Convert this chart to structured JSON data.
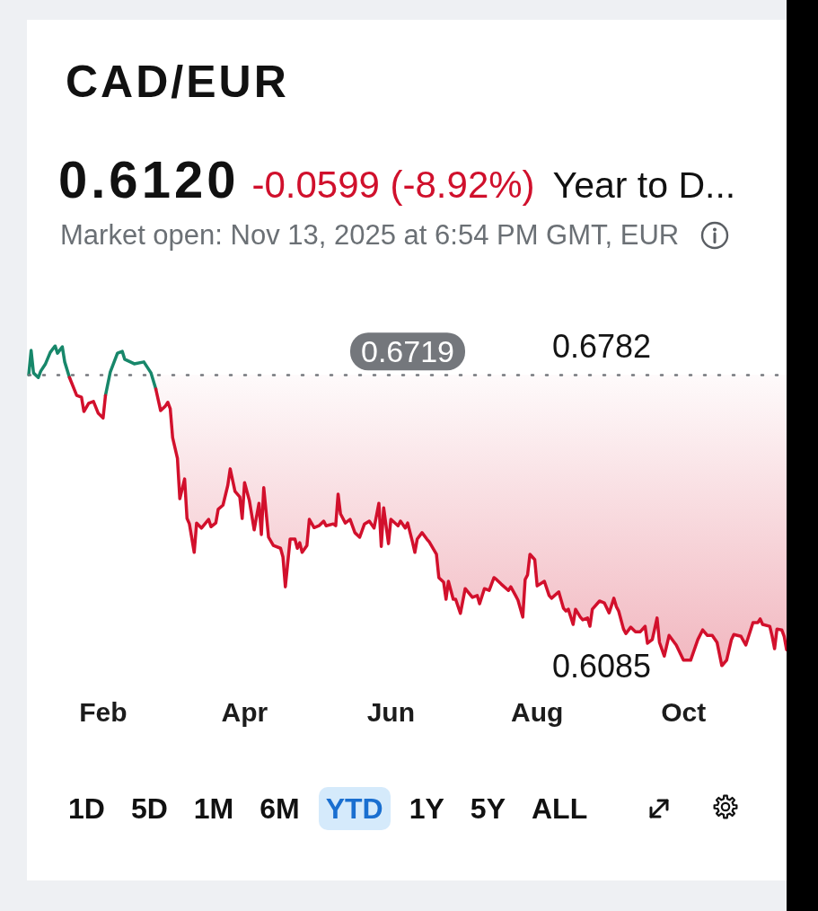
{
  "chart_data": {
    "type": "line",
    "title": "CAD/EUR",
    "annotations": [
      "0.6120",
      "-0.0599 (-8.92%)",
      "Year to D...",
      "Market open: Nov 13, 2025 at 6:54 PM GMT, EUR",
      "1D",
      "5D",
      "1M",
      "6M",
      "YTD",
      "1Y",
      "5Y",
      "ALL"
    ],
    "xlim": [
      "2025-01-01",
      "2025-11-13"
    ],
    "xticks": [
      {
        "value": "2025-02-01",
        "label": "Feb"
      },
      {
        "value": "2025-04-01",
        "label": "Apr"
      },
      {
        "value": "2025-06-01",
        "label": "Jun"
      },
      {
        "value": "2025-08-01",
        "label": "Aug"
      },
      {
        "value": "2025-10-01",
        "label": "Oct"
      }
    ],
    "ylim": [
      0.6085,
      0.6782
    ],
    "yticks": [
      0.6085,
      0.6782
    ],
    "marker": "none",
    "line_style": "solid",
    "ref_lines": [
      {
        "axis": "y",
        "value": 0.6719,
        "label": "0.6719",
        "color": "#74777c",
        "line_style": "dotted"
      }
    ],
    "series": [
      {
        "color": "#17876a",
        "x": [
          "2025-01-01",
          "2025-01-02",
          "2025-01-03",
          "2025-01-05",
          "2025-01-06",
          "2025-01-08",
          "2025-01-10",
          "2025-01-12",
          "2025-01-13",
          "2025-01-15",
          "2025-01-16",
          "2025-01-18",
          "2025-01-24",
          "2025-02-02",
          "2025-02-04",
          "2025-02-07",
          "2025-02-09",
          "2025-02-10",
          "2025-02-14",
          "2025-02-18",
          "2025-02-21",
          "2025-02-23"
        ],
        "values": [
          0.6719,
          0.6772,
          0.6723,
          0.6713,
          0.6727,
          0.6743,
          0.6768,
          0.6782,
          0.6766,
          0.678,
          0.6747,
          0.6713,
          null,
          0.6674,
          0.6725,
          0.6766,
          0.677,
          0.6753,
          0.6743,
          0.6747,
          0.6723,
          0.6688
        ]
      },
      {
        "color": "#d2102c",
        "x": [
          "2025-01-18",
          "2025-01-21",
          "2025-01-23",
          "2025-01-24",
          "2025-01-26",
          "2025-01-28",
          "2025-01-30",
          "2025-02-01",
          "2025-02-02",
          "2025-02-10",
          "2025-02-23",
          "2025-02-25",
          "2025-02-27",
          "2025-02-28",
          "2025-03-01",
          "2025-03-02",
          "2025-03-04",
          "2025-03-05",
          "2025-03-07",
          "2025-03-08",
          "2025-03-09",
          "2025-03-11",
          "2025-03-12",
          "2025-03-14",
          "2025-03-17",
          "2025-03-18",
          "2025-03-20",
          "2025-03-21",
          "2025-03-23",
          "2025-03-25",
          "2025-03-26",
          "2025-03-28",
          "2025-03-30",
          "2025-03-31",
          "2025-04-01",
          "2025-04-03",
          "2025-04-05",
          "2025-04-07",
          "2025-04-08",
          "2025-04-09",
          "2025-04-11",
          "2025-04-13",
          "2025-04-16",
          "2025-04-17",
          "2025-04-18",
          "2025-04-20",
          "2025-04-22",
          "2025-04-23",
          "2025-04-24",
          "2025-04-25",
          "2025-04-27",
          "2025-04-28",
          "2025-04-30",
          "2025-05-02",
          "2025-05-04",
          "2025-05-05",
          "2025-05-08",
          "2025-05-09",
          "2025-05-10",
          "2025-05-11",
          "2025-05-13",
          "2025-05-15",
          "2025-05-17",
          "2025-05-19",
          "2025-05-21",
          "2025-05-23",
          "2025-05-25",
          "2025-05-27",
          "2025-05-28",
          "2025-05-29",
          "2025-05-31",
          "2025-06-01",
          "2025-06-04",
          "2025-06-05",
          "2025-06-07",
          "2025-06-08",
          "2025-06-10",
          "2025-06-11",
          "2025-06-12",
          "2025-06-14",
          "2025-06-16",
          "2025-06-17",
          "2025-06-20",
          "2025-06-21",
          "2025-06-23",
          "2025-06-24",
          "2025-06-25",
          "2025-06-27",
          "2025-06-28",
          "2025-06-30",
          "2025-07-02",
          "2025-07-05",
          "2025-07-07",
          "2025-07-08",
          "2025-07-10",
          "2025-07-12",
          "2025-07-14",
          "2025-07-15",
          "2025-07-17",
          "2025-07-20",
          "2025-07-21",
          "2025-07-23",
          "2025-07-24",
          "2025-07-26",
          "2025-07-27",
          "2025-07-28",
          "2025-07-29",
          "2025-07-31",
          "2025-08-01",
          "2025-08-04",
          "2025-08-06",
          "2025-08-07",
          "2025-08-10",
          "2025-08-12",
          "2025-08-13",
          "2025-08-14",
          "2025-08-16",
          "2025-08-17",
          "2025-08-19",
          "2025-08-20",
          "2025-08-22",
          "2025-08-23",
          "2025-08-24",
          "2025-08-27",
          "2025-08-29",
          "2025-08-31",
          "2025-09-02",
          "2025-09-03",
          "2025-09-04",
          "2025-09-06",
          "2025-09-07",
          "2025-09-09",
          "2025-09-11",
          "2025-09-13",
          "2025-09-15",
          "2025-09-16",
          "2025-09-18",
          "2025-09-20",
          "2025-09-21",
          "2025-09-23",
          "2025-09-25",
          "2025-09-28",
          "2025-10-01",
          "2025-10-04",
          "2025-10-07",
          "2025-10-09",
          "2025-10-11",
          "2025-10-13",
          "2025-10-15",
          "2025-10-17",
          "2025-10-19",
          "2025-10-21",
          "2025-10-22",
          "2025-10-25",
          "2025-10-27",
          "2025-10-30",
          "2025-11-01",
          "2025-11-02",
          "2025-11-03",
          "2025-11-06",
          "2025-11-07",
          "2025-11-08",
          "2025-11-09",
          "2025-11-11",
          "2025-11-12",
          "2025-11-13"
        ],
        "values": [
          0.6713,
          0.6674,
          0.667,
          0.6639,
          0.6657,
          0.6661,
          0.6635,
          0.6625,
          0.6674,
          null,
          0.6688,
          0.6641,
          0.6651,
          0.6659,
          0.6645,
          0.6582,
          0.6537,
          0.6449,
          0.6492,
          0.6406,
          0.6394,
          0.6332,
          0.6396,
          0.6385,
          0.6404,
          0.6388,
          0.6396,
          0.6426,
          0.6435,
          0.6478,
          0.6514,
          0.6465,
          0.6453,
          0.6406,
          0.6484,
          0.6445,
          0.6381,
          0.6439,
          0.6371,
          0.6473,
          0.6365,
          0.6347,
          0.6341,
          0.6322,
          0.6257,
          0.6361,
          0.6361,
          0.6341,
          0.6353,
          0.6332,
          0.6347,
          0.6404,
          0.6386,
          0.639,
          0.64,
          0.639,
          0.6394,
          0.639,
          0.6459,
          0.6416,
          0.6396,
          0.6404,
          0.6375,
          0.6365,
          0.6394,
          0.64,
          0.6385,
          0.6439,
          0.6345,
          0.6429,
          0.6351,
          0.6404,
          0.639,
          0.64,
          0.6385,
          0.6396,
          0.6355,
          0.6332,
          0.6361,
          0.6375,
          0.6361,
          0.6355,
          0.6328,
          0.6277,
          0.6267,
          0.623,
          0.6269,
          0.623,
          0.623,
          0.6199,
          0.6253,
          0.6234,
          0.6238,
          0.622,
          0.6253,
          0.6249,
          0.6277,
          0.6273,
          0.6263,
          0.6249,
          0.6257,
          0.6238,
          0.6228,
          0.6191,
          0.6273,
          0.6283,
          0.6328,
          0.6316,
          0.6259,
          0.6269,
          0.6238,
          0.6232,
          0.6246,
          0.621,
          0.6204,
          0.6208,
          0.6175,
          0.6208,
          0.6191,
          0.6185,
          0.6189,
          0.6171,
          0.6208,
          0.6226,
          0.6222,
          0.62,
          0.6232,
          0.6214,
          0.6204,
          0.6165,
          0.6155,
          0.6169,
          0.6159,
          0.6159,
          0.6171,
          0.6134,
          0.6142,
          0.6189,
          0.6136,
          0.6106,
          0.6151,
          0.613,
          0.6097,
          0.6097,
          0.6142,
          0.6163,
          0.6151,
          0.6151,
          0.6136,
          0.6085,
          0.6097,
          0.6142,
          0.6153,
          0.6149,
          0.613,
          0.6179,
          0.6179,
          0.6187,
          0.6175,
          0.6171,
          0.6149,
          0.6122,
          0.6165,
          0.6163,
          0.6149,
          0.612
        ],
        "lower": [
          null,
          null,
          null,
          null,
          null,
          null,
          null,
          null,
          null,
          null,
          0.6688,
          0.6641,
          0.6651,
          0.6659,
          0.6645,
          0.6582,
          0.6537,
          0.6449,
          0.6492,
          0.6406,
          0.6394,
          0.6332,
          0.6396,
          0.6385,
          0.6404,
          0.6388,
          0.6396,
          0.6426,
          0.6435,
          0.6478,
          0.6514,
          0.6465,
          0.6453,
          0.6406,
          0.6484,
          0.6445,
          0.6381,
          0.6439,
          0.6371,
          0.6473,
          0.6365,
          0.6347,
          0.6341,
          0.6322,
          0.6257,
          0.6361,
          0.6361,
          0.6341,
          0.6353,
          0.6332,
          0.6347,
          0.6404,
          0.6386,
          0.639,
          0.64,
          0.639,
          0.6394,
          0.639,
          0.6459,
          0.6416,
          0.6396,
          0.6404,
          0.6375,
          0.6365,
          0.6394,
          0.64,
          0.6385,
          0.6439,
          0.6345,
          0.6429,
          0.6351,
          0.6404,
          0.639,
          0.64,
          0.6385,
          0.6396,
          0.6355,
          0.6332,
          0.6361,
          0.6375,
          0.6361,
          0.6355,
          0.6328,
          0.6277,
          0.6267,
          0.623,
          0.6269,
          0.623,
          0.623,
          0.6199,
          0.6253,
          0.6234,
          0.6238,
          0.622,
          0.6253,
          0.6249,
          0.6277,
          0.6273,
          0.6263,
          0.6249,
          0.6257,
          0.6238,
          0.6228,
          0.6191,
          0.6273,
          0.6283,
          0.6328,
          0.6316,
          0.6259,
          0.6269,
          0.6238,
          0.6232,
          0.6246,
          0.621,
          0.6204,
          0.6208,
          0.6175,
          0.6208,
          0.6191,
          0.6185,
          0.6189,
          0.6171,
          0.6208,
          0.6226,
          0.6222,
          0.62,
          0.6232,
          0.6214,
          0.6204,
          0.6165,
          0.6155,
          0.6169,
          0.6159,
          0.6159,
          0.6171,
          0.6134,
          0.6142,
          0.6189,
          0.6136,
          0.6106,
          0.6151,
          0.613,
          0.6097,
          0.6097,
          0.6142,
          0.6163,
          0.6151,
          0.6151,
          0.6136,
          0.6085,
          0.6097,
          0.6142,
          0.6153,
          0.6149,
          0.613,
          0.6179,
          0.6179,
          0.6187,
          0.6175,
          0.6171,
          0.6149,
          0.6122,
          0.6165,
          0.6163,
          0.6149,
          0.612
        ],
        "upper": [
          null,
          null,
          null,
          null,
          null,
          null,
          null,
          null,
          null,
          null,
          0.6719,
          0.6719,
          0.6719,
          0.6719,
          0.6719,
          0.6719,
          0.6719,
          0.6719,
          0.6719,
          0.6719,
          0.6719,
          0.6719,
          0.6719,
          0.6719,
          0.6719,
          0.6719,
          0.6719,
          0.6719,
          0.6719,
          0.6719,
          0.6719,
          0.6719,
          0.6719,
          0.6719,
          0.6719,
          0.6719,
          0.6719,
          0.6719,
          0.6719,
          0.6719,
          0.6719,
          0.6719,
          0.6719,
          0.6719,
          0.6719,
          0.6719,
          0.6719,
          0.6719,
          0.6719,
          0.6719,
          0.6719,
          0.6719,
          0.6719,
          0.6719,
          0.6719,
          0.6719,
          0.6719,
          0.6719,
          0.6719,
          0.6719,
          0.6719,
          0.6719,
          0.6719,
          0.6719,
          0.6719,
          0.6719,
          0.6719,
          0.6719,
          0.6719,
          0.6719,
          0.6719,
          0.6719,
          0.6719,
          0.6719,
          0.6719,
          0.6719,
          0.6719,
          0.6719,
          0.6719,
          0.6719,
          0.6719,
          0.6719,
          0.6719,
          0.6719,
          0.6719,
          0.6719,
          0.6719,
          0.6719,
          0.6719,
          0.6719,
          0.6719,
          0.6719,
          0.6719,
          0.6719,
          0.6719,
          0.6719,
          0.6719,
          0.6719,
          0.6719,
          0.6719,
          0.6719,
          0.6719,
          0.6719,
          0.6719,
          0.6719,
          0.6719,
          0.6719,
          0.6719,
          0.6719,
          0.6719,
          0.6719,
          0.6719,
          0.6719,
          0.6719,
          0.6719,
          0.6719,
          0.6719,
          0.6719,
          0.6719,
          0.6719,
          0.6719,
          0.6719,
          0.6719,
          0.6719,
          0.6719,
          0.6719,
          0.6719,
          0.6719,
          0.6719,
          0.6719,
          0.6719,
          0.6719,
          0.6719,
          0.6719,
          0.6719,
          0.6719,
          0.6719,
          0.6719,
          0.6719,
          0.6719,
          0.6719,
          0.6719,
          0.6719,
          0.6719,
          0.6719,
          0.6719,
          0.6719,
          0.6719,
          0.6719,
          0.6719,
          0.6719,
          0.6719,
          0.6719,
          0.6719,
          0.6719,
          0.6719,
          0.6719,
          0.6719,
          0.6719,
          0.6719,
          0.6719,
          0.6719,
          0.6719,
          0.6719,
          0.6719,
          0.6719
        ]
      }
    ]
  }
}
